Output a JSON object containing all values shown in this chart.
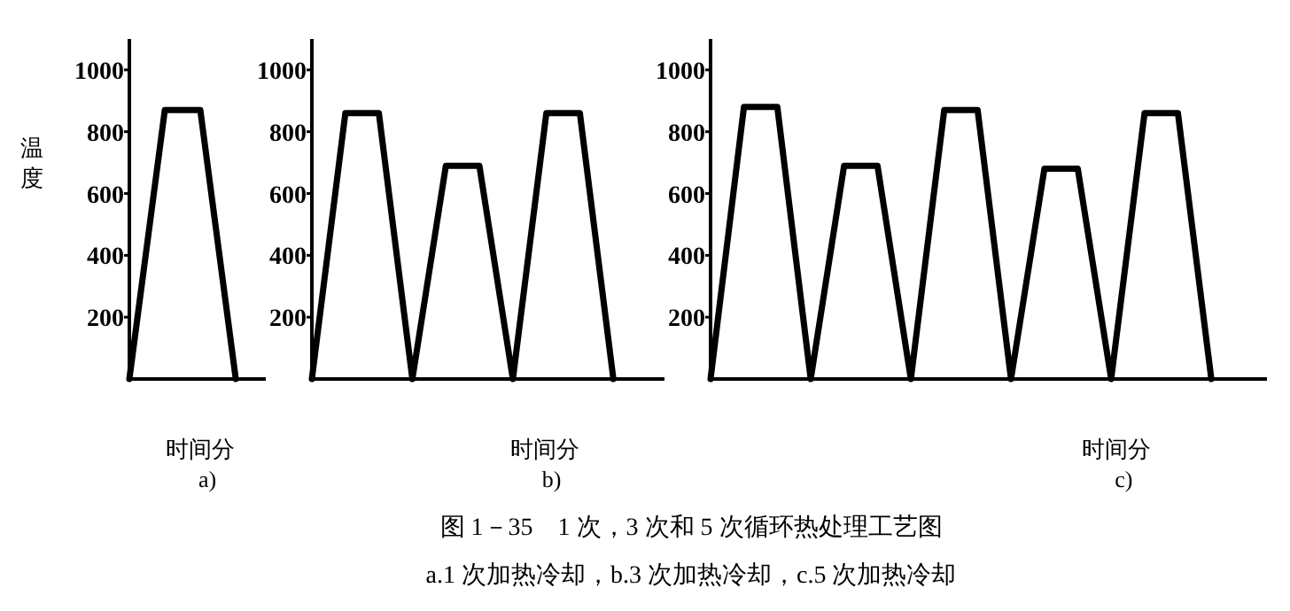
{
  "chart_data": [
    {
      "type": "line",
      "ylabel": "温度",
      "xlabel": "时间分",
      "categories": [
        null,
        null,
        null,
        null
      ],
      "series": [
        {
          "color": "#000000",
          "values": [
            0,
            870,
            870,
            0
          ]
        }
      ],
      "ylim": [
        0,
        1100
      ],
      "yticks": [
        200,
        400,
        600,
        800,
        1000
      ],
      "annotations": [
        "a)",
        "图 1－35　1 次，3 次和 5 次循环热处理工艺图",
        "a.1 次加热冷却，b.3 次加热冷却，c.5 次加热冷却"
      ]
    },
    {
      "type": "line",
      "xlabel": "时间分",
      "categories": [
        null,
        null,
        null,
        null,
        null,
        null,
        null,
        null,
        null,
        null
      ],
      "series": [
        {
          "color": "#000000",
          "values": [
            0,
            860,
            860,
            0,
            690,
            690,
            0,
            860,
            860,
            0
          ]
        }
      ],
      "ylim": [
        0,
        1100
      ],
      "yticks": [
        200,
        400,
        600,
        800,
        1000
      ],
      "annotations": [
        "b)"
      ]
    },
    {
      "type": "line",
      "xlabel": "时间分",
      "categories": [
        null,
        null,
        null,
        null,
        null,
        null,
        null,
        null,
        null,
        null,
        null,
        null,
        null,
        null,
        null,
        null
      ],
      "series": [
        {
          "color": "#000000",
          "values": [
            0,
            880,
            880,
            0,
            690,
            690,
            0,
            870,
            870,
            0,
            680,
            680,
            0,
            860,
            860,
            0
          ]
        }
      ],
      "ylim": [
        0,
        1100
      ],
      "yticks": [
        200,
        400,
        600,
        800,
        1000
      ],
      "annotations": [
        "c)"
      ]
    }
  ]
}
